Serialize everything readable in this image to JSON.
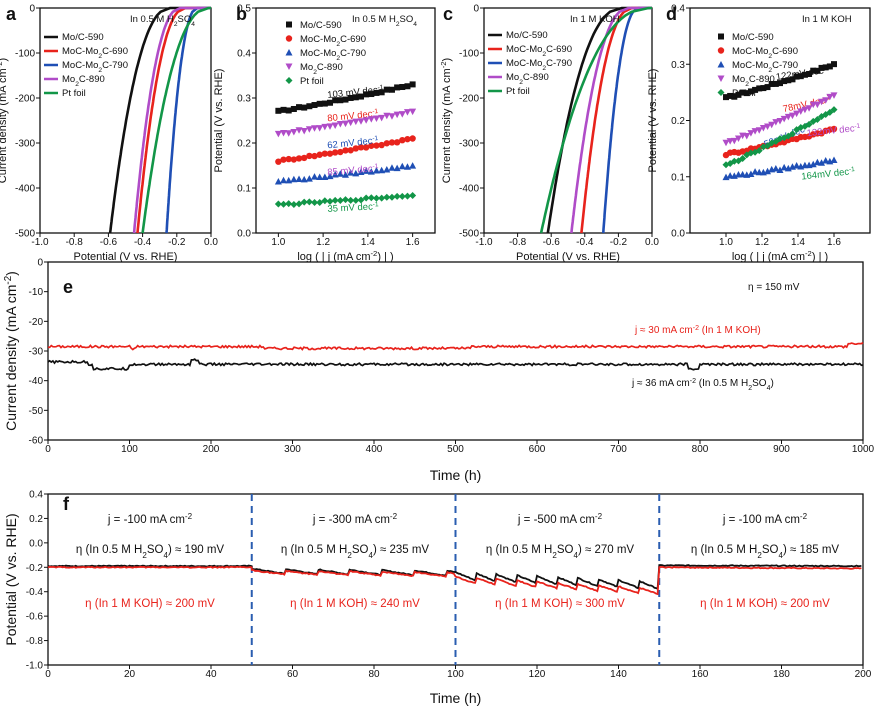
{
  "colors": {
    "black": "#111111",
    "red": "#e8231c",
    "blue": "#1f4fb5",
    "purple": "#b04cc8",
    "green": "#129648",
    "blueDash": "#2a5db0"
  },
  "chart_data": [
    {
      "panel": "a",
      "type": "line",
      "condition": "In 0.5 M H2SO4",
      "xlabel": "Potential (V vs. RHE)",
      "ylabel": "Current density (mA cm-2)",
      "xlim": [
        -1.0,
        0.0
      ],
      "ylim": [
        -500,
        0
      ],
      "xticks": [
        "-1.0",
        "-0.8",
        "-0.6",
        "-0.4",
        "-0.2",
        "0.0"
      ],
      "yticks": [
        "0",
        "-100",
        "-200",
        "-300",
        "-400",
        "-500"
      ],
      "series": [
        {
          "name": "Mo/C-590",
          "color": "black",
          "onset": -0.24,
          "at500": -0.59
        },
        {
          "name": "MoC-Mo2C-690",
          "color": "red",
          "onset": -0.15,
          "at500": -0.43
        },
        {
          "name": "MoC-Mo2C-790",
          "color": "blue",
          "onset": -0.08,
          "at500": -0.26
        },
        {
          "name": "Mo2C-890",
          "color": "purple",
          "onset": -0.18,
          "at500": -0.45
        },
        {
          "name": "Pt foil",
          "color": "green",
          "onset": -0.015,
          "at500": -0.4
        }
      ]
    },
    {
      "panel": "b",
      "type": "line",
      "condition": "In 0.5 M H2SO4",
      "xlabel": "log ( | j (mA cm-2) | )",
      "ylabel": "Potential (V vs. RHE)",
      "xlim": [
        0.9,
        1.7
      ],
      "ylim": [
        0.0,
        0.5
      ],
      "xticks": [
        "1.0",
        "1.2",
        "1.4",
        "1.6"
      ],
      "yticks": [
        "0.0",
        "0.1",
        "0.2",
        "0.3",
        "0.4",
        "0.5"
      ],
      "series": [
        {
          "name": "Mo/C-590",
          "color": "black",
          "x": [
            1.0,
            1.6
          ],
          "y": [
            0.27,
            0.33
          ],
          "label": "103 mV dec-1"
        },
        {
          "name": "MoC-Mo2C-690",
          "color": "red",
          "x": [
            1.0,
            1.6
          ],
          "y": [
            0.16,
            0.21
          ],
          "label": "80 mV dec-1"
        },
        {
          "name": "MoC-Mo2C-790",
          "color": "blue",
          "x": [
            1.0,
            1.6
          ],
          "y": [
            0.115,
            0.15
          ],
          "label": "62 mV dec-1"
        },
        {
          "name": "Mo2C-890",
          "color": "purple",
          "x": [
            1.0,
            1.6
          ],
          "y": [
            0.22,
            0.27
          ],
          "label": "85 mV dec-1"
        },
        {
          "name": "Pt foil",
          "color": "green",
          "x": [
            1.0,
            1.6
          ],
          "y": [
            0.063,
            0.084
          ],
          "label": "35 mV dec-1"
        }
      ]
    },
    {
      "panel": "c",
      "type": "line",
      "condition": "In 1 M KOH",
      "xlabel": "Potential (V vs. RHE)",
      "ylabel": "Current density (mA cm-2)",
      "xlim": [
        -1.0,
        0.0
      ],
      "ylim": [
        -500,
        0
      ],
      "xticks": [
        "-1.0",
        "-0.8",
        "-0.6",
        "-0.4",
        "-0.2",
        "0.0"
      ],
      "yticks": [
        "0",
        "-100",
        "-200",
        "-300",
        "-400",
        "-500"
      ],
      "series": [
        {
          "name": "Mo/C-590",
          "color": "black",
          "onset": -0.18,
          "at500": -0.62
        },
        {
          "name": "MoC-Mo2C-690",
          "color": "red",
          "onset": -0.12,
          "at500": -0.42
        },
        {
          "name": "MoC-Mo2C-790",
          "color": "blue",
          "onset": -0.08,
          "at500": -0.29
        },
        {
          "name": "Mo2C-890",
          "color": "purple",
          "onset": -0.14,
          "at500": -0.48
        },
        {
          "name": "Pt foil",
          "color": "green",
          "onset": -0.02,
          "at500": -0.66
        }
      ]
    },
    {
      "panel": "d",
      "type": "line",
      "condition": "In 1 M KOH",
      "xlabel": "log ( | j (mA cm-2) | )",
      "ylabel": "Potential (V vs. RHE)",
      "xlim": [
        0.8,
        1.8
      ],
      "ylim": [
        0.0,
        0.4
      ],
      "xticks": [
        "1.0",
        "1.2",
        "1.4",
        "1.6"
      ],
      "yticks": [
        "0.0",
        "0.1",
        "0.2",
        "0.3",
        "0.4"
      ],
      "series": [
        {
          "name": "Mo/C-590",
          "color": "black",
          "x": [
            1.0,
            1.6
          ],
          "y": [
            0.24,
            0.3
          ],
          "label": "122mV dec-1"
        },
        {
          "name": "MoC-Mo2C-690",
          "color": "red",
          "x": [
            1.0,
            1.6
          ],
          "y": [
            0.14,
            0.185
          ],
          "label": "78mV dec-1"
        },
        {
          "name": "MoC-Mo2C-790",
          "color": "blue",
          "x": [
            1.0,
            1.6
          ],
          "y": [
            0.1,
            0.13
          ],
          "label": "59mV dec-1"
        },
        {
          "name": "Mo2C-890",
          "color": "purple",
          "x": [
            1.0,
            1.6
          ],
          "y": [
            0.16,
            0.245
          ],
          "label": "132mV dec-1"
        },
        {
          "name": "Pt foil",
          "color": "green",
          "x": [
            1.0,
            1.6
          ],
          "y": [
            0.12,
            0.22
          ],
          "label": "164mV dec-1"
        }
      ]
    },
    {
      "panel": "e",
      "type": "line",
      "xlabel": "Time (h)",
      "ylabel": "Current density (mA cm-2)",
      "xlim": [
        0,
        1000
      ],
      "ylim": [
        -60,
        0
      ],
      "xticks": [
        "0",
        "100",
        "200",
        "300",
        "400",
        "500",
        "600",
        "700",
        "800",
        "900",
        "1000"
      ],
      "yticks": [
        "0",
        "-10",
        "-20",
        "-30",
        "-40",
        "-50",
        "-60"
      ],
      "eta": "η = 150 mV",
      "series": [
        {
          "name": "j ≈ 30 mA cm-2 (In 1 M KOH)",
          "color": "red",
          "mean": -28.5
        },
        {
          "name": "j ≈ 36 mA cm-2 (In 0.5 M H2SO4)",
          "color": "black",
          "mean": -34.5
        }
      ]
    },
    {
      "panel": "f",
      "type": "line",
      "xlabel": "Time (h)",
      "ylabel": "Potential (V vs. RHE)",
      "xlim": [
        0,
        200
      ],
      "ylim": [
        -1.0,
        0.4
      ],
      "xticks": [
        "0",
        "20",
        "40",
        "60",
        "80",
        "100",
        "120",
        "140",
        "160",
        "180",
        "200"
      ],
      "yticks": [
        "0.4",
        "0.2",
        "0.0",
        "-0.2",
        "-0.4",
        "-0.6",
        "-0.8",
        "-1.0"
      ],
      "segments": [
        {
          "range": [
            0,
            50
          ],
          "j": "j = -100 mA cm-2",
          "eta_acid": "η (In 0.5 M H2SO4) ≈ 190 mV",
          "eta_base": "η (In 1 M KOH) ≈ 200 mV",
          "acid": [
            -0.19,
            -0.19
          ],
          "base": [
            -0.2,
            -0.2
          ]
        },
        {
          "range": [
            50,
            100
          ],
          "j": "j = -300 mA cm-2",
          "eta_acid": "η (In 0.5 M H2SO4) ≈ 235 mV",
          "eta_base": "η (In 1 M KOH) ≈ 240 mV",
          "acid": [
            -0.23,
            -0.25
          ],
          "base": [
            -0.24,
            -0.26
          ]
        },
        {
          "range": [
            100,
            150
          ],
          "j": "j = -500 mA cm-2",
          "eta_acid": "η (In 0.5 M H2SO4) ≈ 270 mV",
          "eta_base": "η (In 1 M KOH) ≈ 300 mV",
          "acid": [
            -0.27,
            -0.35
          ],
          "base": [
            -0.3,
            -0.4
          ]
        },
        {
          "range": [
            150,
            200
          ],
          "j": "j = -100 mA cm-2",
          "eta_acid": "η (In 0.5 M H2SO4) ≈ 185 mV",
          "eta_base": "η (In 1 M KOH) ≈ 200 mV",
          "acid": [
            -0.185,
            -0.19
          ],
          "base": [
            -0.2,
            -0.21
          ]
        }
      ],
      "dividers": [
        50,
        100,
        150
      ]
    }
  ]
}
